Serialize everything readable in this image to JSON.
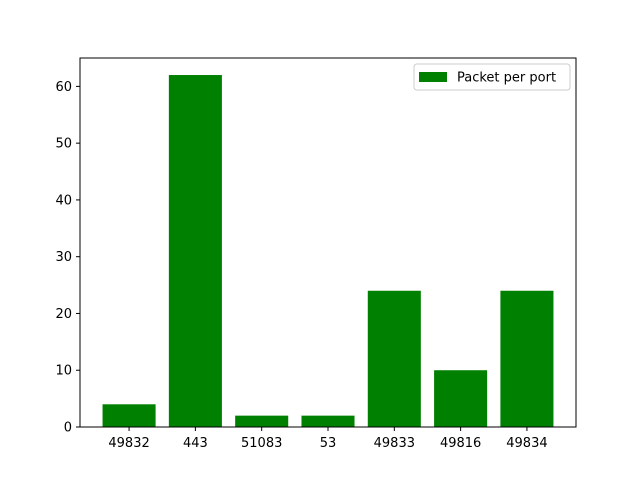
{
  "chart_data": {
    "type": "bar",
    "categories": [
      "49832",
      "443",
      "51083",
      "53",
      "49833",
      "49816",
      "49834"
    ],
    "series": [
      {
        "name": "Packet per port",
        "values": [
          4,
          62,
          2,
          2,
          24,
          10,
          24
        ],
        "color": "#008000"
      }
    ],
    "ylim": [
      0,
      65
    ],
    "yticks": [
      0,
      10,
      20,
      30,
      40,
      50,
      60
    ],
    "grid": false,
    "legend": {
      "placement": "top-right"
    },
    "title": "",
    "xlabel": "",
    "ylabel": ""
  }
}
